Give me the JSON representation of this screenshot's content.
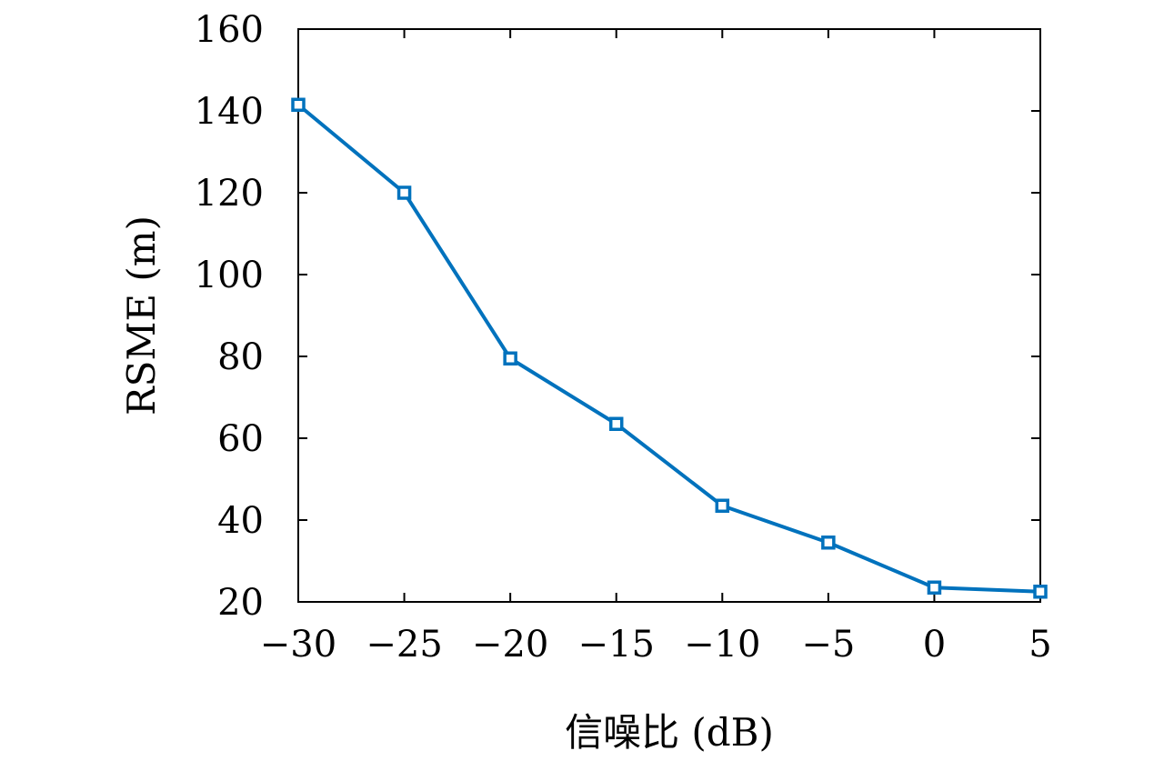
{
  "chart_data": {
    "type": "line",
    "title": "",
    "xlabel": "信噪比 (dB)",
    "ylabel": "RSME (m)",
    "x": [
      -30,
      -25,
      -20,
      -15,
      -10,
      -5,
      0,
      5
    ],
    "series": [
      {
        "values": [
          141.5,
          120,
          79.5,
          63.5,
          43.5,
          34.5,
          23.5,
          22.5
        ],
        "color": "#0072BD",
        "marker": "square"
      }
    ],
    "xlim": [
      -30,
      5
    ],
    "ylim": [
      20,
      160
    ],
    "x_ticks": [
      -30,
      -25,
      -20,
      -15,
      -10,
      -5,
      0,
      5
    ],
    "x_tick_labels": [
      "−30",
      "−25",
      "−20",
      "−15",
      "−10",
      "−5",
      "0",
      "5"
    ],
    "y_ticks": [
      20,
      40,
      60,
      80,
      100,
      120,
      140,
      160
    ],
    "y_tick_labels": [
      "20",
      "40",
      "60",
      "80",
      "100",
      "120",
      "140",
      "160"
    ],
    "grid": false,
    "legend": "none"
  }
}
